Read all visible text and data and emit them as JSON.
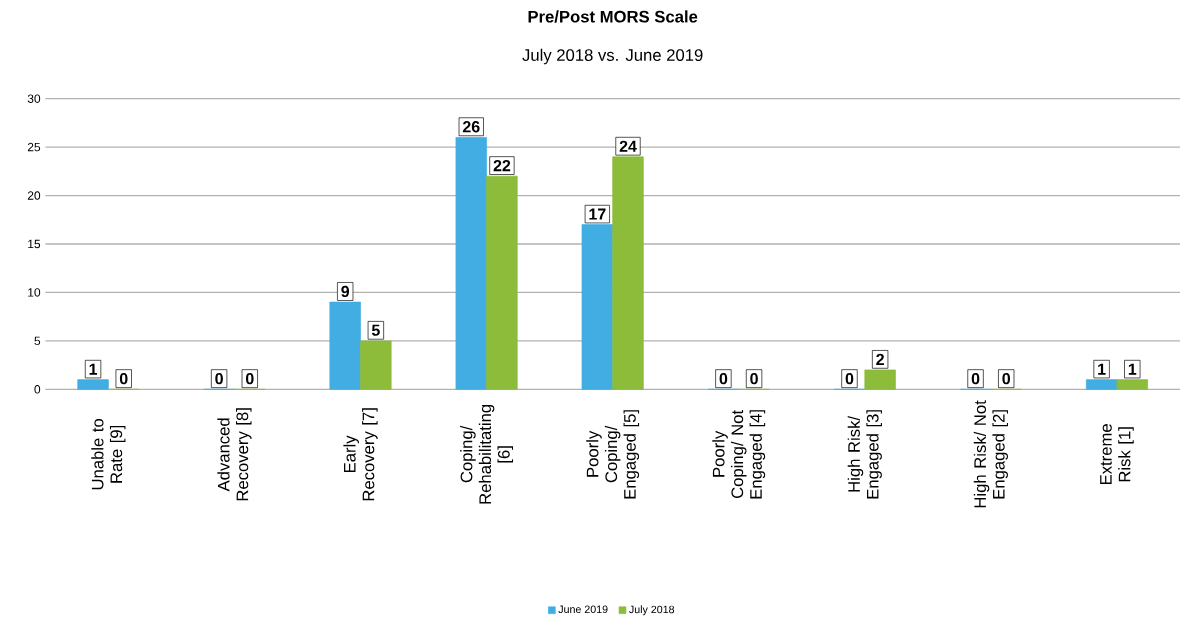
{
  "chart_data": {
    "type": "bar",
    "title": "Pre/Post MORS Scale",
    "subtitle": "July 2018 vs. June 2019",
    "categories": [
      "Unable to Rate [9]",
      "Advanced Recovery [8]",
      "Early Recovery [7]",
      "Coping/ Rehabilitating [6]",
      "Poorly Coping/ Engaged [5]",
      "Poorly Coping/ Not Engaged [4]",
      "High Risk/ Engaged [3]",
      "High Risk/ Not Engaged [2]",
      "Extreme Risk [1]"
    ],
    "series": [
      {
        "name": "June 2019",
        "color": "#41ade2",
        "values": [
          1,
          0,
          9,
          26,
          17,
          0,
          0,
          0,
          1
        ]
      },
      {
        "name": "July 2018",
        "color": "#8dbb3a",
        "values": [
          0,
          0,
          5,
          22,
          24,
          0,
          2,
          0,
          1
        ]
      }
    ],
    "ylim": [
      0,
      30
    ],
    "yticks": [
      0,
      5,
      10,
      15,
      20,
      25,
      30
    ],
    "grid": "y",
    "legend": "bottom",
    "data_labels": true
  }
}
